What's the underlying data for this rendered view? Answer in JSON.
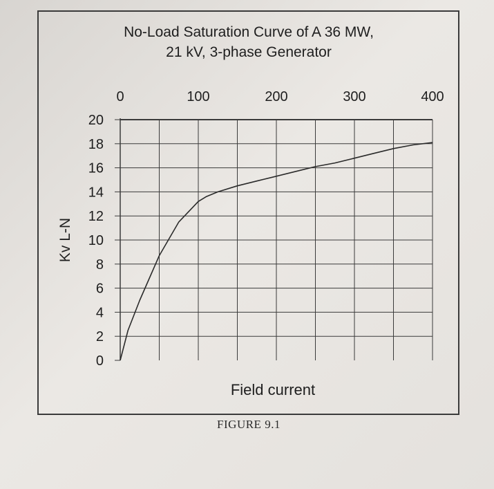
{
  "figure": {
    "title_line1": "No-Load Saturation Curve of A 36 MW,",
    "title_line2": "21 kV, 3-phase Generator",
    "caption": "FIGURE 9.1"
  },
  "chart_data": {
    "type": "line",
    "title": "No-Load Saturation Curve of A 36 MW, 21 kV, 3-phase Generator",
    "xlabel": "Field current",
    "ylabel": "Kv L-N",
    "xlim": [
      0,
      400
    ],
    "ylim": [
      0,
      20
    ],
    "x_ticks": [
      0,
      100,
      200,
      300,
      400
    ],
    "y_ticks": [
      0,
      2,
      4,
      6,
      8,
      10,
      12,
      14,
      16,
      18,
      20
    ],
    "x_axis_position": "top",
    "grid": true,
    "series": [
      {
        "x": [
          0,
          10,
          25,
          50,
          75,
          100,
          110,
          125,
          150,
          175,
          200,
          225,
          250,
          275,
          300,
          325,
          350,
          375,
          400
        ],
        "y": [
          0,
          2.5,
          5.0,
          8.7,
          11.5,
          13.2,
          13.6,
          14.0,
          14.5,
          14.9,
          15.3,
          15.7,
          16.1,
          16.4,
          16.8,
          17.2,
          17.6,
          17.9,
          18.1
        ]
      }
    ],
    "colors": {
      "line": "#2a2a2a",
      "grid": "#3a3a3a",
      "text": "#1e1e1e"
    }
  }
}
